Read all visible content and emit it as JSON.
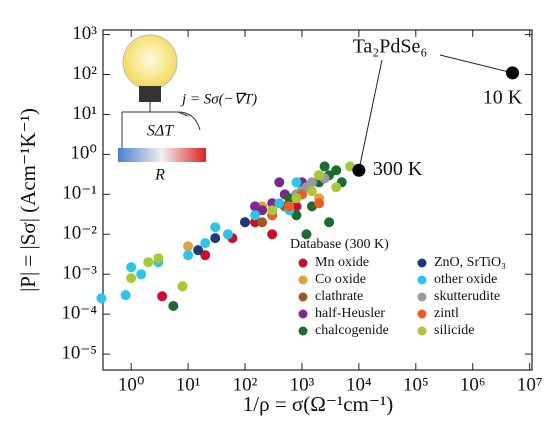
{
  "chart_data": {
    "type": "scatter",
    "x_label": "1/ρ = σ(Ω⁻¹cm⁻¹)",
    "y_label": "|P| = |Sσ| (Acm⁻¹K⁻¹)",
    "log_x": true,
    "log_y": true,
    "xlim": [
      0.32,
      11000000
    ],
    "ylim": [
      4e-06,
      1300
    ],
    "xticks": [
      {
        "value": 1,
        "label": "10⁰"
      },
      {
        "value": 10,
        "label": "10¹"
      },
      {
        "value": 100,
        "label": "10²"
      },
      {
        "value": 1000,
        "label": "10³"
      },
      {
        "value": 10000,
        "label": "10⁴"
      },
      {
        "value": 100000,
        "label": "10⁵"
      },
      {
        "value": 1000000,
        "label": "10⁶"
      },
      {
        "value": 10000000,
        "label": "10⁷"
      }
    ],
    "yticks": [
      {
        "value": 1e-05,
        "label": "10⁻⁵"
      },
      {
        "value": 0.0001,
        "label": "10⁻⁴"
      },
      {
        "value": 0.001,
        "label": "10⁻³"
      },
      {
        "value": 0.01,
        "label": "10⁻²"
      },
      {
        "value": 0.1,
        "label": "10⁻¹"
      },
      {
        "value": 1,
        "label": "10⁰"
      },
      {
        "value": 10,
        "label": "10¹"
      },
      {
        "value": 100,
        "label": "10²"
      },
      {
        "value": 1000,
        "label": "10³"
      }
    ],
    "legend_title": "Database (300 K)",
    "legend_position": "lower right",
    "series": [
      {
        "name": "Mn oxide",
        "color": "#c8102e",
        "x": [
          3.5,
          20,
          60,
          150,
          300,
          800
        ],
        "values": [
          0.00028,
          0.003,
          0.008,
          0.02,
          0.01,
          0.05
        ]
      },
      {
        "name": "Co oxide",
        "color": "#e0a040",
        "x": [
          10,
          50,
          200,
          500,
          1000,
          2000
        ],
        "values": [
          0.005,
          0.01,
          0.05,
          0.1,
          0.15,
          0.08
        ]
      },
      {
        "name": "clathrate",
        "color": "#a0561c",
        "x": [
          200,
          300,
          500,
          800
        ],
        "values": [
          0.02,
          0.03,
          0.05,
          0.1
        ]
      },
      {
        "name": "half-Heusler",
        "color": "#7a2a8c",
        "x": [
          100,
          150,
          200,
          300,
          400,
          500,
          1000,
          2000
        ],
        "values": [
          0.02,
          0.05,
          0.04,
          0.06,
          0.2,
          0.1,
          0.2,
          0.3
        ]
      },
      {
        "name": "chalcogenide",
        "color": "#1e6b30",
        "x": [
          5.5,
          600,
          800,
          1000,
          1200,
          1500,
          2000,
          2500,
          3000,
          3000,
          4000,
          5000
        ],
        "values": [
          0.00016,
          0.08,
          0.03,
          0.1,
          0.01,
          0.05,
          0.2,
          0.5,
          0.3,
          0.02,
          0.4,
          0.2
        ]
      },
      {
        "name": "ZnO, SrTiO₃",
        "color": "#1f3a7a",
        "x": [
          15,
          30,
          100
        ],
        "values": [
          0.004,
          0.008,
          0.02
        ]
      },
      {
        "name": "other oxide",
        "color": "#2cc5e8",
        "x": [
          0.3,
          0.8,
          1,
          1.5,
          3,
          10,
          20,
          30,
          50,
          150,
          400,
          600,
          800,
          1000
        ],
        "values": [
          0.00025,
          0.0003,
          0.0015,
          0.001,
          0.002,
          0.003,
          0.006,
          0.015,
          0.01,
          0.03,
          0.06,
          0.04,
          0.2,
          0.12
        ]
      },
      {
        "name": "skutterudite",
        "color": "#9a9a9a",
        "x": [
          800,
          1200,
          1500,
          2500
        ],
        "values": [
          0.1,
          0.15,
          0.2,
          0.25
        ]
      },
      {
        "name": "zintl",
        "color": "#f05a28",
        "x": [
          8,
          300,
          600,
          1000,
          2000
        ],
        "values": [
          0.0005,
          0.03,
          0.05,
          0.1,
          0.06
        ]
      },
      {
        "name": "silicide",
        "color": "#a8c83c",
        "x": [
          1,
          2,
          3,
          8,
          300,
          800,
          1500,
          2000,
          4000,
          7000
        ],
        "values": [
          0.0008,
          0.002,
          0.0025,
          0.0005,
          0.04,
          0.08,
          0.12,
          0.3,
          0.15,
          0.5
        ]
      }
    ],
    "highlight": {
      "name": "Ta₂PdSe₆",
      "color": "#000000",
      "x": [
        10000,
        5000000
      ],
      "values": [
        0.4,
        110
      ],
      "labels": [
        "300 K",
        "10 K"
      ]
    },
    "inset": {
      "current": "j = Sσ(−∇T)",
      "voltage": "SΔT",
      "resistance": "R"
    }
  }
}
